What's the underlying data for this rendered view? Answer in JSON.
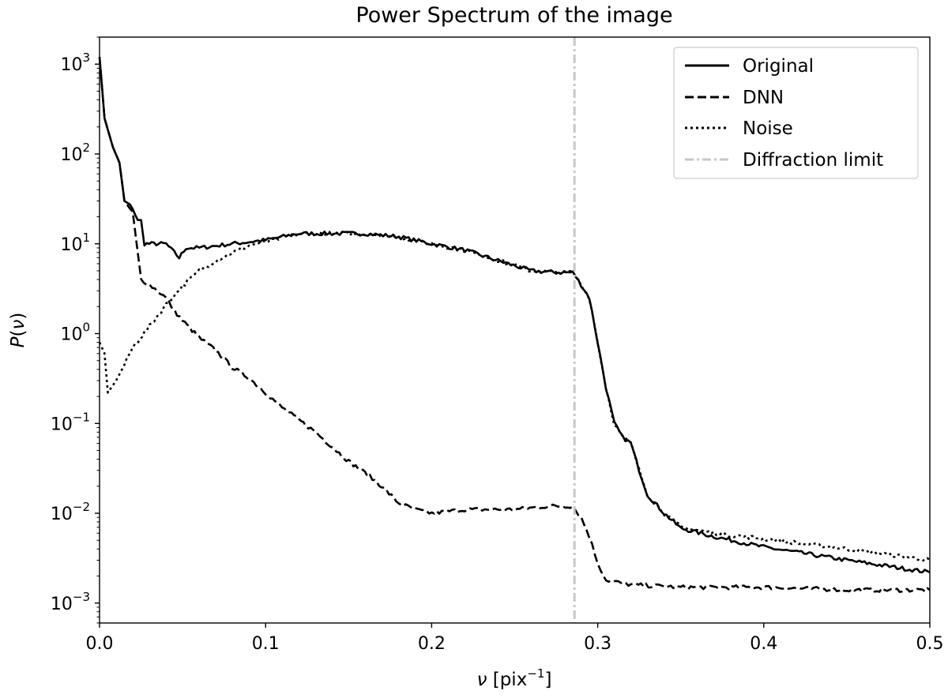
{
  "chart_data": {
    "type": "line",
    "title": "Power Spectrum of the image",
    "xlabel": {
      "prefix": "ν",
      "main": " [pix",
      "exp": "−1",
      "suffix": "]"
    },
    "ylabel": {
      "main": "P",
      "paren_open": "(",
      "var": "ν",
      "paren_close": ")"
    },
    "xlim": [
      0.0,
      0.5
    ],
    "ylim": [
      0.0006,
      2000
    ],
    "yscale": "log",
    "xticks": [
      {
        "value": 0.0,
        "label": "0.0"
      },
      {
        "value": 0.1,
        "label": "0.1"
      },
      {
        "value": 0.2,
        "label": "0.2"
      },
      {
        "value": 0.3,
        "label": "0.3"
      },
      {
        "value": 0.4,
        "label": "0.4"
      },
      {
        "value": 0.5,
        "label": "0.5"
      }
    ],
    "yticks": [
      {
        "value": 0.001,
        "base": "10",
        "exp": "−3"
      },
      {
        "value": 0.01,
        "base": "10",
        "exp": "−2"
      },
      {
        "value": 0.1,
        "base": "10",
        "exp": "−1"
      },
      {
        "value": 1,
        "base": "10",
        "exp": "0"
      },
      {
        "value": 10,
        "base": "10",
        "exp": "1"
      },
      {
        "value": 100,
        "base": "10",
        "exp": "2"
      },
      {
        "value": 1000,
        "base": "10",
        "exp": "3"
      }
    ],
    "grid": false,
    "legend_position": "top-right",
    "series": [
      {
        "name": "Original",
        "style": "solid",
        "color": "#000000",
        "points": [
          [
            0.0,
            1200
          ],
          [
            0.003,
            250
          ],
          [
            0.008,
            120
          ],
          [
            0.012,
            80
          ],
          [
            0.015,
            30
          ],
          [
            0.02,
            25
          ],
          [
            0.023,
            18
          ],
          [
            0.025,
            18
          ],
          [
            0.027,
            10
          ],
          [
            0.04,
            10
          ],
          [
            0.045,
            8
          ],
          [
            0.048,
            7
          ],
          [
            0.052,
            9
          ],
          [
            0.06,
            9
          ],
          [
            0.08,
            10
          ],
          [
            0.1,
            11
          ],
          [
            0.12,
            13
          ],
          [
            0.14,
            13
          ],
          [
            0.16,
            13
          ],
          [
            0.18,
            12
          ],
          [
            0.2,
            10
          ],
          [
            0.22,
            8.5
          ],
          [
            0.24,
            6.5
          ],
          [
            0.26,
            5
          ],
          [
            0.275,
            4.8
          ],
          [
            0.285,
            4.8
          ],
          [
            0.29,
            3.5
          ],
          [
            0.295,
            2.5
          ],
          [
            0.3,
            0.8
          ],
          [
            0.305,
            0.25
          ],
          [
            0.31,
            0.1
          ],
          [
            0.315,
            0.07
          ],
          [
            0.32,
            0.06
          ],
          [
            0.325,
            0.03
          ],
          [
            0.33,
            0.016
          ],
          [
            0.34,
            0.01
          ],
          [
            0.35,
            0.0068
          ],
          [
            0.37,
            0.0055
          ],
          [
            0.4,
            0.0042
          ],
          [
            0.45,
            0.003
          ],
          [
            0.5,
            0.0022
          ]
        ]
      },
      {
        "name": "DNN",
        "style": "dashed",
        "color": "#000000",
        "points": [
          [
            0.0,
            1200
          ],
          [
            0.003,
            250
          ],
          [
            0.008,
            120
          ],
          [
            0.012,
            80
          ],
          [
            0.015,
            30
          ],
          [
            0.02,
            22
          ],
          [
            0.025,
            4.0
          ],
          [
            0.03,
            3.5
          ],
          [
            0.035,
            3.0
          ],
          [
            0.04,
            2.5
          ],
          [
            0.045,
            1.8
          ],
          [
            0.05,
            1.4
          ],
          [
            0.06,
            0.9
          ],
          [
            0.07,
            0.65
          ],
          [
            0.08,
            0.42
          ],
          [
            0.09,
            0.32
          ],
          [
            0.1,
            0.22
          ],
          [
            0.11,
            0.15
          ],
          [
            0.12,
            0.11
          ],
          [
            0.13,
            0.08
          ],
          [
            0.14,
            0.055
          ],
          [
            0.15,
            0.038
          ],
          [
            0.16,
            0.028
          ],
          [
            0.17,
            0.02
          ],
          [
            0.18,
            0.013
          ],
          [
            0.19,
            0.011
          ],
          [
            0.2,
            0.01
          ],
          [
            0.22,
            0.011
          ],
          [
            0.25,
            0.011
          ],
          [
            0.27,
            0.012
          ],
          [
            0.285,
            0.012
          ],
          [
            0.29,
            0.009
          ],
          [
            0.295,
            0.0055
          ],
          [
            0.3,
            0.0028
          ],
          [
            0.305,
            0.0018
          ],
          [
            0.32,
            0.0016
          ],
          [
            0.35,
            0.0015
          ],
          [
            0.4,
            0.0015
          ],
          [
            0.45,
            0.0014
          ],
          [
            0.5,
            0.0014
          ]
        ]
      },
      {
        "name": "Noise",
        "style": "dotted",
        "color": "#000000",
        "points": [
          [
            0.0,
            0.8
          ],
          [
            0.003,
            0.6
          ],
          [
            0.005,
            0.22
          ],
          [
            0.01,
            0.3
          ],
          [
            0.015,
            0.45
          ],
          [
            0.02,
            0.7
          ],
          [
            0.03,
            1.2
          ],
          [
            0.04,
            2.1
          ],
          [
            0.05,
            3.4
          ],
          [
            0.06,
            5
          ],
          [
            0.07,
            6.5
          ],
          [
            0.08,
            8
          ],
          [
            0.09,
            9.5
          ],
          [
            0.1,
            10.5
          ],
          [
            0.12,
            13
          ],
          [
            0.14,
            13
          ],
          [
            0.16,
            13
          ],
          [
            0.18,
            12
          ],
          [
            0.2,
            10
          ],
          [
            0.22,
            8.5
          ],
          [
            0.24,
            6.5
          ],
          [
            0.26,
            5
          ],
          [
            0.275,
            4.8
          ],
          [
            0.285,
            4.8
          ],
          [
            0.29,
            3.5
          ],
          [
            0.295,
            2.5
          ],
          [
            0.3,
            0.8
          ],
          [
            0.305,
            0.25
          ],
          [
            0.31,
            0.1
          ],
          [
            0.315,
            0.07
          ],
          [
            0.32,
            0.06
          ],
          [
            0.325,
            0.03
          ],
          [
            0.33,
            0.016
          ],
          [
            0.34,
            0.01
          ],
          [
            0.35,
            0.007
          ],
          [
            0.37,
            0.006
          ],
          [
            0.4,
            0.0052
          ],
          [
            0.45,
            0.004
          ],
          [
            0.5,
            0.003
          ]
        ]
      },
      {
        "name": "Diffraction limit",
        "style": "dashdot",
        "color": "#c8c8c8",
        "x": 0.286
      }
    ]
  }
}
